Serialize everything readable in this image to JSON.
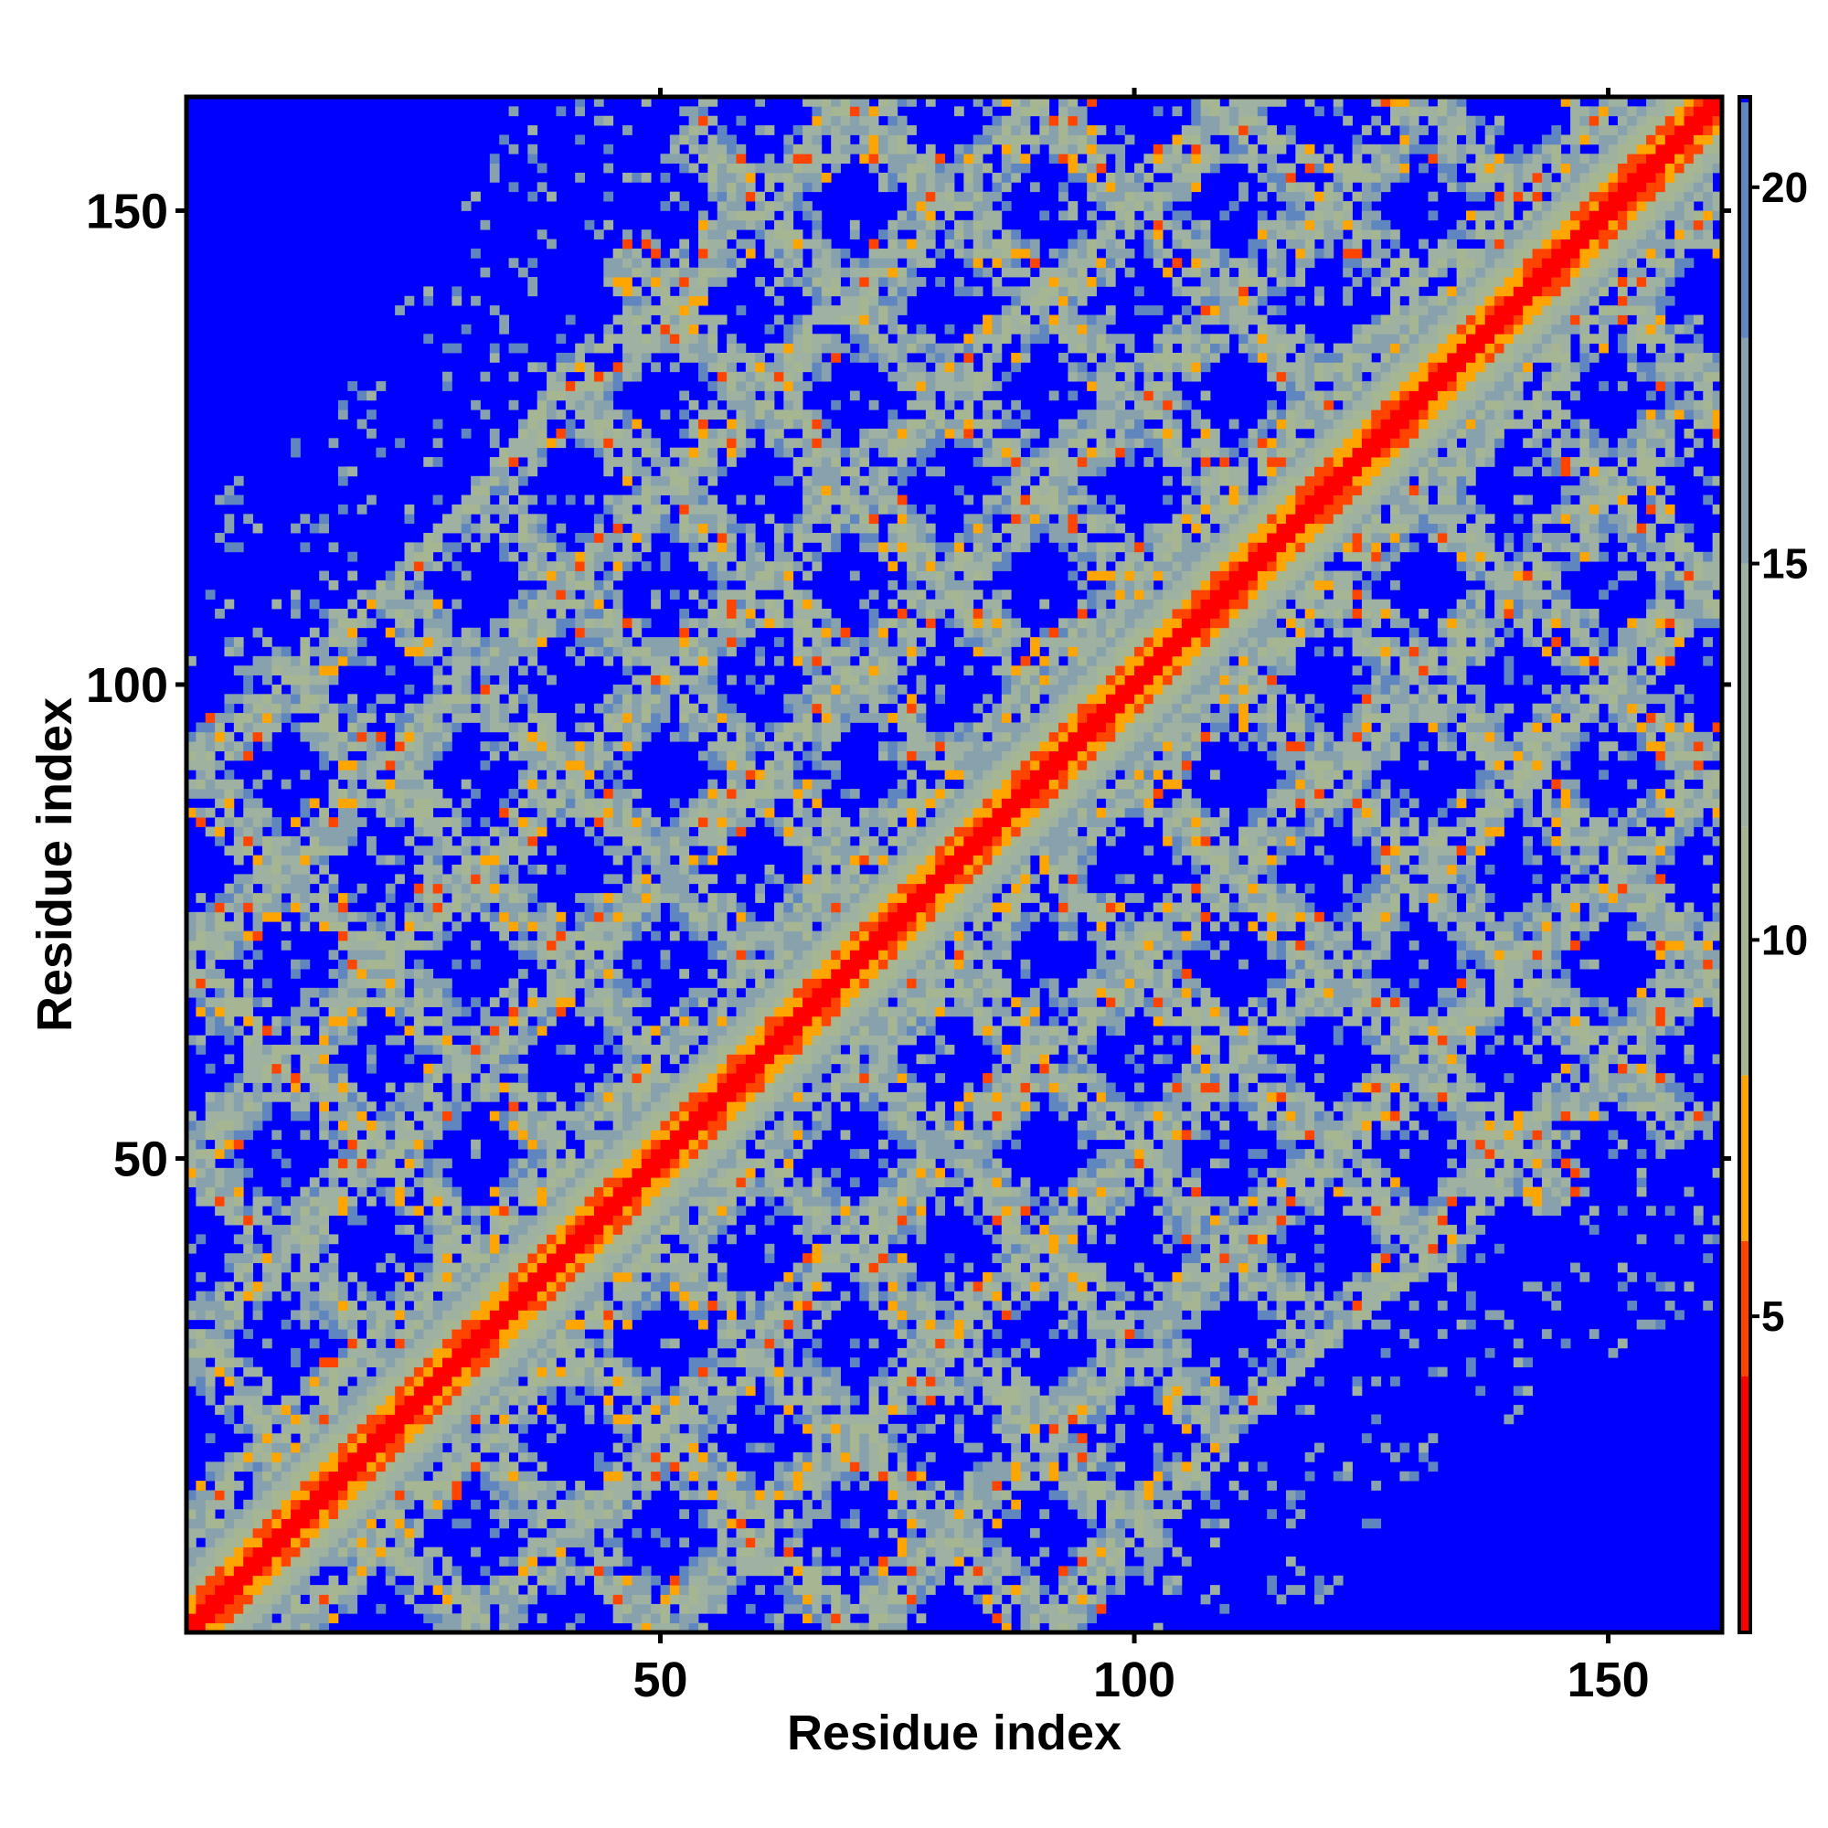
{
  "chart_data": {
    "type": "heatmap",
    "title": "",
    "xlabel": "Residue index",
    "ylabel": "Residue index",
    "xlim": [
      0,
      162
    ],
    "ylim": [
      0,
      162
    ],
    "n_residues": 162,
    "x_ticks": [
      50,
      100,
      150
    ],
    "y_ticks": [
      50,
      100,
      150
    ],
    "colorbar": {
      "ticks": [
        5,
        10,
        15,
        20
      ],
      "range": [
        0.8,
        21.2
      ],
      "colors": {
        "very_close": "#ff0000",
        "close": "#ff4400",
        "near": "#ffa500",
        "mid_low": "#9fb08a",
        "mid": "#a9b79a",
        "mid_high": "#8ea4a4",
        "upper": "#6b8fb5",
        "far": "#0000ff"
      },
      "bands": [
        {
          "from": 0.8,
          "to": 4.2,
          "color": "#ff0000"
        },
        {
          "from": 4.2,
          "to": 6.0,
          "color": "#ff4400"
        },
        {
          "from": 6.0,
          "to": 8.2,
          "color": "#ffa500"
        },
        {
          "from": 8.2,
          "to": 11.5,
          "color": "#a6b693"
        },
        {
          "from": 11.5,
          "to": 15.0,
          "color": "#9fb1a0"
        },
        {
          "from": 15.0,
          "to": 18.0,
          "color": "#87a1ad"
        },
        {
          "from": 18.0,
          "to": 21.2,
          "color": "#5f86bf"
        }
      ]
    },
    "structure": {
      "description_values": "distance matrix of a closed-loop (ring) fold; diagonal distance ~1-4, near-diagonal band up to ~8 residues wide, periodic contact lattice with period ~20 residues",
      "diagonal_band_width": 6,
      "lattice_period": 20,
      "far_value": 21.2
    }
  }
}
